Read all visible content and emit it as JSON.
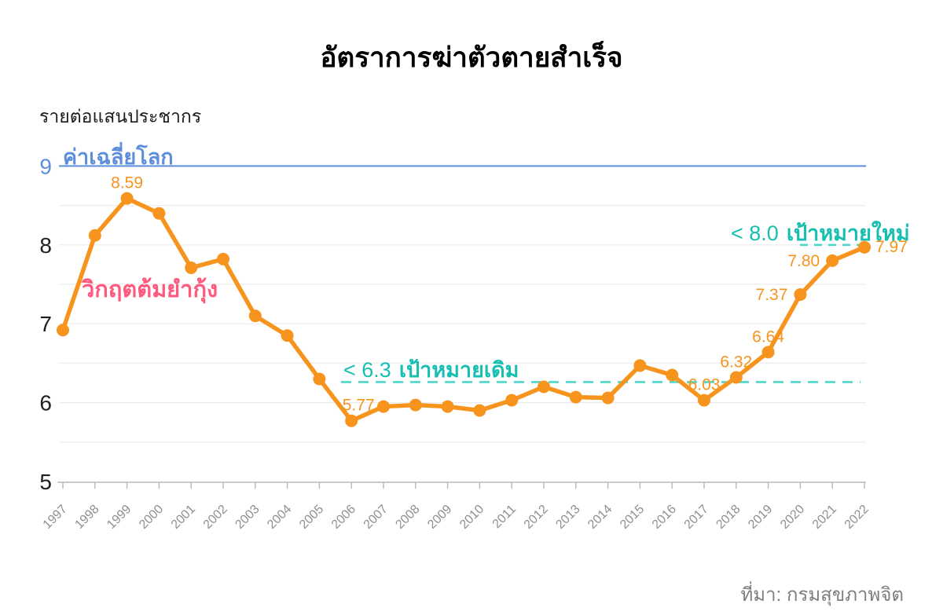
{
  "title": "อัตราการฆ่าตัวตายสำเร็จ",
  "unit_label": "รายต่อแสนประชากร",
  "source": "ที่มา: กรมสุขภาพจิต",
  "annotations": {
    "world_average": {
      "label": "ค่าเฉลี่ยโลก",
      "value": 9
    },
    "crisis": {
      "label": "วิกฤตต้มยำกุ้ง"
    },
    "old_target": {
      "threshold": "< 6.3",
      "label": "เป้าหมายเดิม",
      "value": 6.3
    },
    "new_target": {
      "threshold": "< 8.0",
      "label": "เป้าหมายใหม่",
      "value": 8.0
    }
  },
  "colors": {
    "series_orange": "#F7941E",
    "world_average_blue": "#5D8EDC",
    "target_teal_text": "#16BFB1",
    "target_teal_dash": "#4ED6C9",
    "crisis_pink": "#FF5A7E",
    "gridline": "#ECECEC",
    "axis": "#B8B8B8",
    "x_tick_label": "#8F8F8F",
    "y_tick_label": "#1F1F1F"
  },
  "chart_data": {
    "type": "line",
    "title": "อัตราการฆ่าตัวตายสำเร็จ",
    "ylabel": "รายต่อแสนประชากร",
    "ylim": [
      5,
      9
    ],
    "yticks": [
      5,
      6,
      7,
      8,
      9
    ],
    "grid": "horizontal-half-unit",
    "x": [
      1997,
      1998,
      1999,
      2000,
      2001,
      2002,
      2003,
      2004,
      2005,
      2006,
      2007,
      2008,
      2009,
      2010,
      2011,
      2012,
      2013,
      2014,
      2015,
      2016,
      2017,
      2018,
      2019,
      2020,
      2021,
      2022
    ],
    "series": [
      {
        "name": "อัตราการฆ่าตัวตายสำเร็จ",
        "values": [
          6.92,
          8.12,
          8.59,
          8.4,
          7.71,
          7.82,
          7.1,
          6.85,
          6.3,
          5.77,
          5.95,
          5.97,
          5.95,
          5.9,
          6.03,
          6.2,
          6.07,
          6.06,
          6.47,
          6.35,
          6.03,
          6.32,
          6.64,
          7.37,
          7.8,
          7.97
        ]
      }
    ],
    "point_labels": [
      {
        "year": 1999,
        "text": "8.59",
        "pos": "above"
      },
      {
        "year": 2006,
        "text": "5.77",
        "pos": "above-right"
      },
      {
        "year": 2017,
        "text": "6.03",
        "pos": "above"
      },
      {
        "year": 2018,
        "text": "6.32",
        "pos": "above"
      },
      {
        "year": 2019,
        "text": "6.64",
        "pos": "above"
      },
      {
        "year": 2020,
        "text": "7.37",
        "pos": "left"
      },
      {
        "year": 2021,
        "text": "7.80",
        "pos": "left"
      },
      {
        "year": 2022,
        "text": "7.97",
        "pos": "right"
      }
    ],
    "reference_lines": [
      {
        "name": "world_average",
        "value": 9.0,
        "style": "solid"
      },
      {
        "name": "old_target",
        "value": 6.3,
        "style": "dashed"
      },
      {
        "name": "new_target",
        "value": 8.0,
        "style": "dashed"
      }
    ]
  }
}
